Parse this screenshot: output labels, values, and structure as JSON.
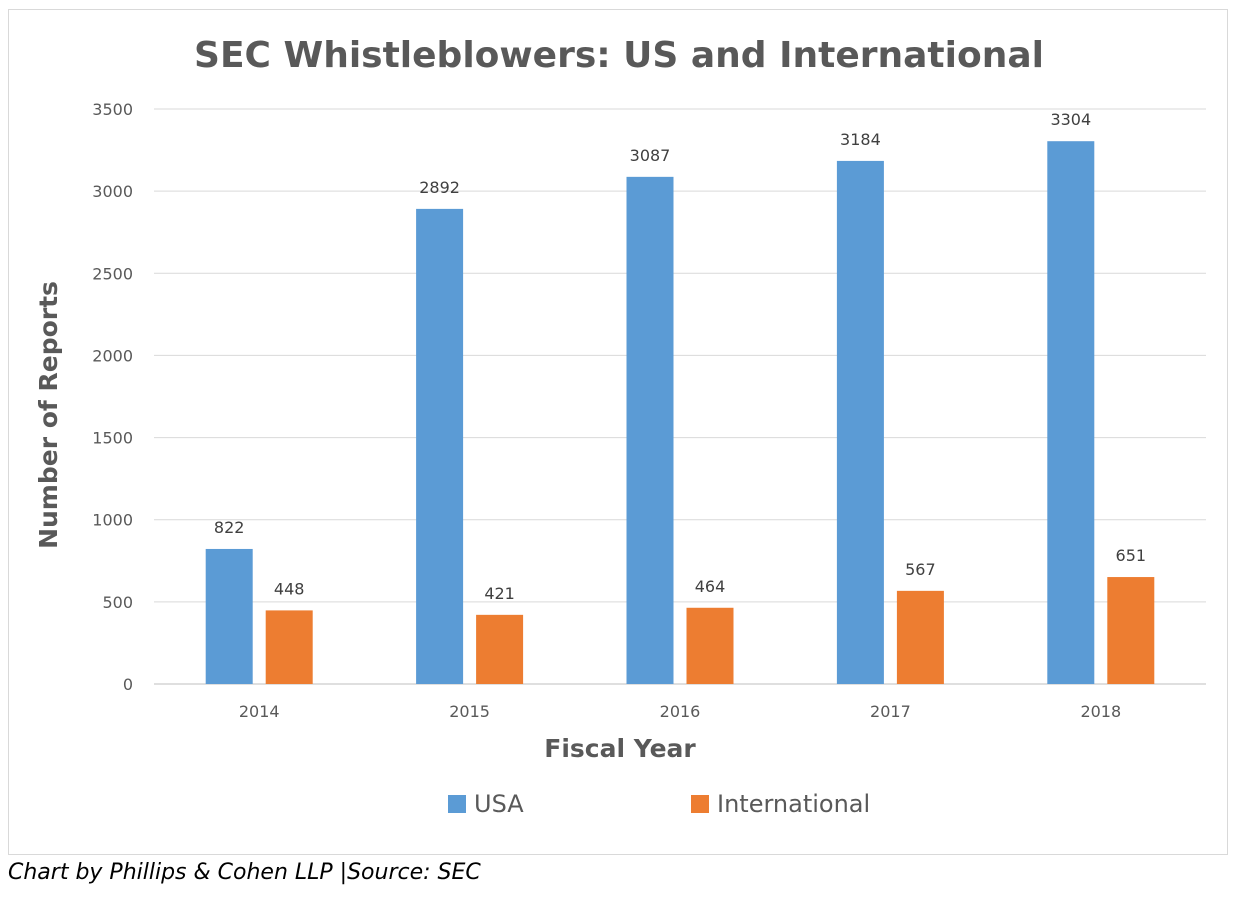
{
  "caption": "Chart by Phillips & Cohen LLP |Source: SEC",
  "chart_data": {
    "type": "bar",
    "title": "SEC Whistleblowers: US and International",
    "xlabel": "Fiscal Year",
    "ylabel": "Number of Reports",
    "categories": [
      "2014",
      "2015",
      "2016",
      "2017",
      "2018"
    ],
    "series": [
      {
        "name": "USA",
        "color": "#5b9bd5",
        "values": [
          822,
          2892,
          3087,
          3184,
          3304
        ]
      },
      {
        "name": "International",
        "color": "#ed7d31",
        "values": [
          448,
          421,
          464,
          567,
          651
        ]
      }
    ],
    "ylim": [
      0,
      3500
    ],
    "yticks": [
      0,
      500,
      1000,
      1500,
      2000,
      2500,
      3000,
      3500
    ],
    "grid": true,
    "legend_position": "bottom",
    "data_labels": true
  }
}
